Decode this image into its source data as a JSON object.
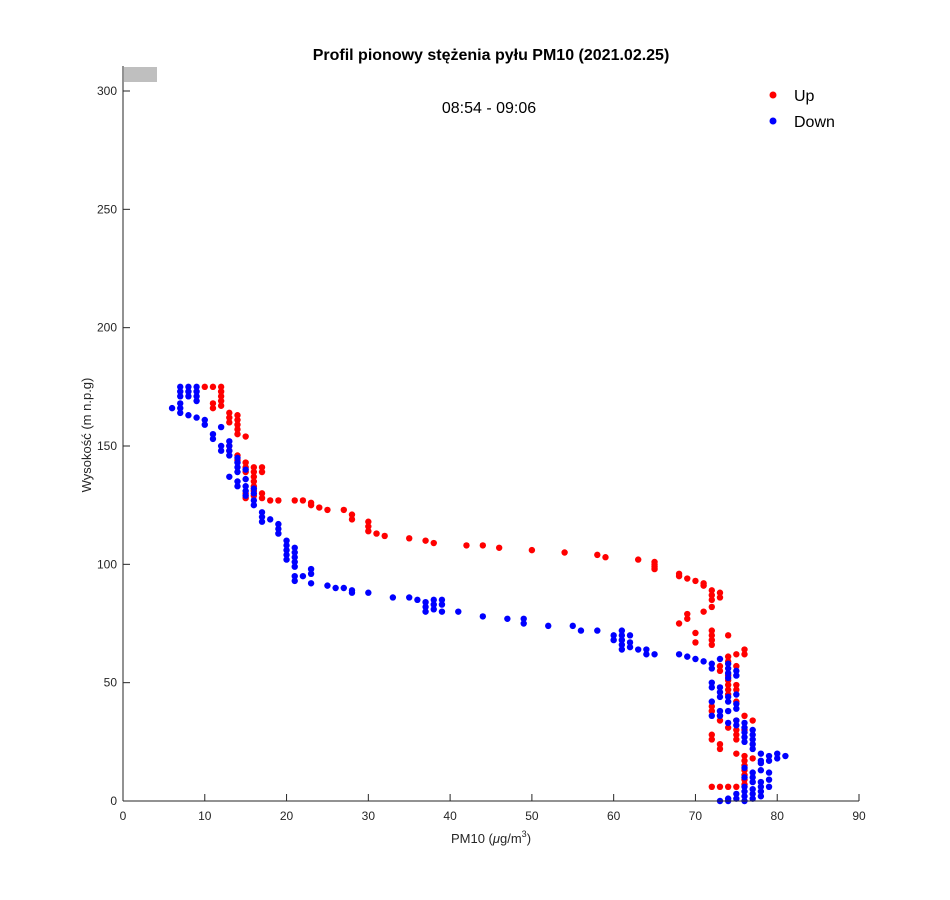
{
  "chart_data": {
    "type": "scatter",
    "title": "Profil pionowy stężenia pyłu PM10 (2021.02.25)",
    "annotation": "08:54 - 09:06",
    "xlabel_prefix": "PM10 (",
    "xlabel_mu": "μ",
    "xlabel_unit": "g/m",
    "xlabel_sup": "3",
    "xlabel_suffix": ")",
    "ylabel": "Wysokość (m n.p.g)",
    "xlim": [
      0,
      90
    ],
    "ylim": [
      0,
      300
    ],
    "x_ticks": [
      "0",
      "10",
      "20",
      "30",
      "40",
      "50",
      "60",
      "70",
      "80",
      "90"
    ],
    "y_ticks": [
      "0",
      "50",
      "100",
      "150",
      "200",
      "250",
      "300"
    ],
    "grid": false,
    "legend_position": "top-right",
    "series": [
      {
        "name": "Up",
        "color": "#ff0000",
        "points": [
          [
            10,
            175
          ],
          [
            11,
            175
          ],
          [
            12,
            175
          ],
          [
            12,
            173
          ],
          [
            12,
            171
          ],
          [
            12,
            169
          ],
          [
            12,
            167
          ],
          [
            11,
            166
          ],
          [
            11,
            168
          ],
          [
            13,
            164
          ],
          [
            13,
            162
          ],
          [
            13,
            160
          ],
          [
            14,
            163
          ],
          [
            14,
            161
          ],
          [
            14,
            159
          ],
          [
            14,
            157
          ],
          [
            14,
            155
          ],
          [
            15,
            154
          ],
          [
            13,
            150
          ],
          [
            13,
            148
          ],
          [
            14,
            146
          ],
          [
            14,
            144
          ],
          [
            15,
            143
          ],
          [
            15,
            141
          ],
          [
            15,
            139
          ],
          [
            16,
            141
          ],
          [
            16,
            139
          ],
          [
            16,
            137
          ],
          [
            16,
            135
          ],
          [
            16,
            133
          ],
          [
            16,
            131
          ],
          [
            17,
            141
          ],
          [
            17,
            139
          ],
          [
            15,
            130
          ],
          [
            15,
            128
          ],
          [
            16,
            129
          ],
          [
            17,
            130
          ],
          [
            17,
            128
          ],
          [
            18,
            127
          ],
          [
            19,
            127
          ],
          [
            21,
            127
          ],
          [
            22,
            127
          ],
          [
            23,
            126
          ],
          [
            23,
            125
          ],
          [
            24,
            124
          ],
          [
            25,
            123
          ],
          [
            27,
            123
          ],
          [
            28,
            121
          ],
          [
            28,
            119
          ],
          [
            30,
            118
          ],
          [
            30,
            116
          ],
          [
            30,
            114
          ],
          [
            31,
            113
          ],
          [
            32,
            112
          ],
          [
            35,
            111
          ],
          [
            37,
            110
          ],
          [
            38,
            109
          ],
          [
            42,
            108
          ],
          [
            44,
            108
          ],
          [
            46,
            107
          ],
          [
            50,
            106
          ],
          [
            54,
            105
          ],
          [
            58,
            104
          ],
          [
            59,
            103
          ],
          [
            63,
            102
          ],
          [
            65,
            101
          ],
          [
            65,
            100
          ],
          [
            65,
            99
          ],
          [
            65,
            98
          ],
          [
            68,
            96
          ],
          [
            68,
            95
          ],
          [
            69,
            94
          ],
          [
            70,
            93
          ],
          [
            71,
            92
          ],
          [
            71,
            91
          ],
          [
            72,
            89
          ],
          [
            72,
            87
          ],
          [
            72,
            85
          ],
          [
            73,
            88
          ],
          [
            73,
            86
          ],
          [
            72,
            82
          ],
          [
            71,
            80
          ],
          [
            69,
            79
          ],
          [
            69,
            77
          ],
          [
            68,
            75
          ],
          [
            70,
            67
          ],
          [
            70,
            71
          ],
          [
            72,
            72
          ],
          [
            72,
            70
          ],
          [
            72,
            68
          ],
          [
            72,
            66
          ],
          [
            74,
            70
          ],
          [
            73,
            57
          ],
          [
            73,
            55
          ],
          [
            74,
            61
          ],
          [
            74,
            59
          ],
          [
            75,
            62
          ],
          [
            76,
            64
          ],
          [
            76,
            62
          ],
          [
            75,
            57
          ],
          [
            74,
            53
          ],
          [
            74,
            51
          ],
          [
            74,
            49
          ],
          [
            74,
            47
          ],
          [
            74,
            45
          ],
          [
            75,
            42
          ],
          [
            75,
            49
          ],
          [
            75,
            47
          ],
          [
            72,
            40
          ],
          [
            72,
            38
          ],
          [
            73,
            36
          ],
          [
            73,
            34
          ],
          [
            72,
            28
          ],
          [
            72,
            26
          ],
          [
            73,
            24
          ],
          [
            73,
            22
          ],
          [
            74,
            31
          ],
          [
            75,
            30
          ],
          [
            75,
            28
          ],
          [
            75,
            26
          ],
          [
            75,
            34
          ],
          [
            76,
            36
          ],
          [
            77,
            34
          ],
          [
            76,
            30
          ],
          [
            75,
            20
          ],
          [
            76,
            19
          ],
          [
            76,
            17
          ],
          [
            76,
            15
          ],
          [
            76,
            13
          ],
          [
            76,
            11
          ],
          [
            76,
            9
          ],
          [
            76,
            7
          ],
          [
            77,
            18
          ],
          [
            72,
            6
          ],
          [
            73,
            6
          ],
          [
            74,
            6
          ],
          [
            75,
            6
          ]
        ]
      },
      {
        "name": "Down",
        "color": "#0000ff",
        "points": [
          [
            7,
            175
          ],
          [
            7,
            173
          ],
          [
            7,
            171
          ],
          [
            8,
            175
          ],
          [
            8,
            173
          ],
          [
            8,
            171
          ],
          [
            9,
            175
          ],
          [
            9,
            173
          ],
          [
            9,
            169
          ],
          [
            9,
            171
          ],
          [
            6,
            166
          ],
          [
            7,
            168
          ],
          [
            7,
            166
          ],
          [
            7,
            164
          ],
          [
            8,
            163
          ],
          [
            9,
            162
          ],
          [
            10,
            161
          ],
          [
            10,
            159
          ],
          [
            11,
            155
          ],
          [
            11,
            153
          ],
          [
            12,
            158
          ],
          [
            12,
            150
          ],
          [
            12,
            148
          ],
          [
            13,
            152
          ],
          [
            13,
            150
          ],
          [
            13,
            148
          ],
          [
            13,
            146
          ],
          [
            13,
            137
          ],
          [
            14,
            145
          ],
          [
            14,
            143
          ],
          [
            14,
            141
          ],
          [
            14,
            139
          ],
          [
            14,
            135
          ],
          [
            14,
            133
          ],
          [
            15,
            140
          ],
          [
            15,
            136
          ],
          [
            15,
            133
          ],
          [
            15,
            131
          ],
          [
            15,
            129
          ],
          [
            16,
            132
          ],
          [
            16,
            130
          ],
          [
            16,
            127
          ],
          [
            16,
            125
          ],
          [
            17,
            122
          ],
          [
            17,
            120
          ],
          [
            17,
            118
          ],
          [
            18,
            119
          ],
          [
            19,
            117
          ],
          [
            19,
            115
          ],
          [
            19,
            113
          ],
          [
            20,
            110
          ],
          [
            20,
            108
          ],
          [
            20,
            106
          ],
          [
            20,
            104
          ],
          [
            20,
            102
          ],
          [
            21,
            107
          ],
          [
            21,
            105
          ],
          [
            21,
            103
          ],
          [
            21,
            101
          ],
          [
            21,
            99
          ],
          [
            21,
            95
          ],
          [
            21,
            93
          ],
          [
            22,
            95
          ],
          [
            23,
            98
          ],
          [
            23,
            96
          ],
          [
            23,
            92
          ],
          [
            25,
            91
          ],
          [
            26,
            90
          ],
          [
            27,
            90
          ],
          [
            28,
            89
          ],
          [
            28,
            88
          ],
          [
            30,
            88
          ],
          [
            33,
            86
          ],
          [
            35,
            86
          ],
          [
            36,
            85
          ],
          [
            37,
            84
          ],
          [
            37,
            82
          ],
          [
            37,
            80
          ],
          [
            38,
            85
          ],
          [
            38,
            83
          ],
          [
            38,
            81
          ],
          [
            39,
            85
          ],
          [
            39,
            83
          ],
          [
            39,
            80
          ],
          [
            41,
            80
          ],
          [
            44,
            78
          ],
          [
            47,
            77
          ],
          [
            49,
            77
          ],
          [
            49,
            75
          ],
          [
            52,
            74
          ],
          [
            55,
            74
          ],
          [
            56,
            72
          ],
          [
            58,
            72
          ],
          [
            60,
            70
          ],
          [
            60,
            68
          ],
          [
            61,
            72
          ],
          [
            61,
            70
          ],
          [
            61,
            68
          ],
          [
            61,
            66
          ],
          [
            61,
            64
          ],
          [
            62,
            70
          ],
          [
            62,
            67
          ],
          [
            62,
            65
          ],
          [
            63,
            64
          ],
          [
            64,
            64
          ],
          [
            64,
            62
          ],
          [
            65,
            62
          ],
          [
            68,
            62
          ],
          [
            69,
            61
          ],
          [
            70,
            60
          ],
          [
            71,
            59
          ],
          [
            72,
            58
          ],
          [
            72,
            56
          ],
          [
            73,
            60
          ],
          [
            74,
            58
          ],
          [
            74,
            56
          ],
          [
            74,
            54
          ],
          [
            74,
            52
          ],
          [
            75,
            55
          ],
          [
            75,
            53
          ],
          [
            72,
            50
          ],
          [
            72,
            48
          ],
          [
            73,
            48
          ],
          [
            73,
            46
          ],
          [
            73,
            44
          ],
          [
            72,
            42
          ],
          [
            72,
            36
          ],
          [
            73,
            38
          ],
          [
            73,
            36
          ],
          [
            74,
            44
          ],
          [
            74,
            42
          ],
          [
            74,
            38
          ],
          [
            74,
            33
          ],
          [
            75,
            45
          ],
          [
            75,
            41
          ],
          [
            75,
            39
          ],
          [
            75,
            34
          ],
          [
            75,
            32
          ],
          [
            76,
            33
          ],
          [
            76,
            31
          ],
          [
            76,
            29
          ],
          [
            76,
            27
          ],
          [
            76,
            25
          ],
          [
            77,
            30
          ],
          [
            77,
            28
          ],
          [
            77,
            26
          ],
          [
            77,
            24
          ],
          [
            77,
            22
          ],
          [
            78,
            20
          ],
          [
            78,
            17
          ],
          [
            78,
            16
          ],
          [
            79,
            19
          ],
          [
            79,
            17
          ],
          [
            80,
            20
          ],
          [
            80,
            18
          ],
          [
            81,
            19
          ],
          [
            73,
            0
          ],
          [
            74,
            0
          ],
          [
            74,
            1
          ],
          [
            75,
            1
          ],
          [
            75,
            3
          ],
          [
            76,
            2
          ],
          [
            76,
            4
          ],
          [
            76,
            6
          ],
          [
            76,
            0
          ],
          [
            77,
            1
          ],
          [
            77,
            3
          ],
          [
            77,
            5
          ],
          [
            77,
            8
          ],
          [
            77,
            10
          ],
          [
            77,
            12
          ],
          [
            78,
            2
          ],
          [
            78,
            4
          ],
          [
            78,
            6
          ],
          [
            78,
            8
          ],
          [
            79,
            6
          ],
          [
            79,
            9
          ],
          [
            79,
            12
          ],
          [
            78,
            13
          ],
          [
            76,
            14
          ],
          [
            76,
            10
          ]
        ]
      }
    ]
  }
}
